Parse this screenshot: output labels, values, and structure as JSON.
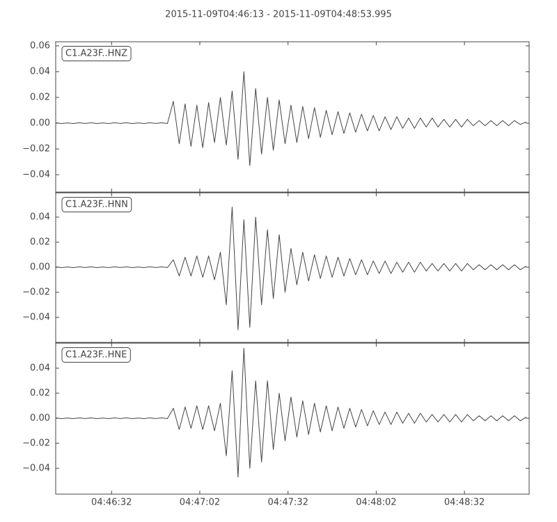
{
  "title": "2015-11-09T04:46:13  -  2015-11-09T04:48:53.995",
  "chart_data": [
    {
      "type": "line",
      "x": [
        0,
        2,
        4,
        6,
        8,
        10,
        12,
        14,
        16,
        18,
        20,
        22,
        24,
        26,
        28,
        30,
        32,
        34,
        36,
        38,
        40,
        42,
        44,
        46,
        48,
        50,
        52,
        54,
        56,
        58,
        60,
        62,
        64,
        66,
        68,
        70,
        72,
        74,
        76,
        78,
        80,
        82,
        84,
        86,
        88,
        90,
        92,
        94,
        96,
        98,
        100,
        102,
        104,
        106,
        108,
        110,
        112,
        114,
        116,
        118,
        120,
        122,
        124,
        126,
        128,
        130,
        132,
        134,
        136,
        138,
        140,
        142,
        144,
        146,
        148,
        150,
        152,
        154,
        156,
        158,
        160
      ],
      "series": [
        {
          "name": "C1.A23F..HNZ",
          "color": "#444444",
          "values": [
            0.0003,
            -0.0003,
            0.0002,
            -0.0003,
            0.0003,
            -0.0002,
            0.0003,
            -0.0003,
            0.0002,
            -0.0003,
            0.0003,
            -0.0002,
            0.0003,
            -0.0003,
            0.0002,
            -0.0003,
            0.0003,
            -0.0002,
            0.0003,
            -0.0003,
            0.017,
            -0.016,
            0.015,
            -0.018,
            0.014,
            -0.019,
            0.016,
            -0.015,
            0.02,
            -0.017,
            0.025,
            -0.028,
            0.04,
            -0.033,
            0.027,
            -0.024,
            0.02,
            -0.021,
            0.018,
            -0.016,
            0.014,
            -0.015,
            0.013,
            -0.012,
            0.012,
            -0.011,
            0.01,
            -0.009,
            0.009,
            -0.008,
            0.008,
            -0.007,
            0.007,
            -0.006,
            0.006,
            -0.006,
            0.005,
            -0.005,
            0.005,
            -0.004,
            0.004,
            -0.004,
            0.004,
            -0.003,
            0.004,
            -0.003,
            0.003,
            -0.003,
            0.003,
            -0.003,
            0.003,
            -0.002,
            0.002,
            -0.002,
            0.002,
            -0.002,
            0.002,
            -0.002,
            0.002,
            -0.001,
            0.001
          ]
        }
      ],
      "xlim": [
        0,
        160.995
      ],
      "ylim": [
        -0.0535,
        0.0632
      ],
      "yticks": [
        {
          "value": -0.04,
          "label": "−0.04"
        },
        {
          "value": -0.02,
          "label": "−0.02"
        },
        {
          "value": 0,
          "label": "0.00"
        },
        {
          "value": 0.02,
          "label": "0.02"
        },
        {
          "value": 0.04,
          "label": "0.04"
        },
        {
          "value": 0.06,
          "label": "0.06"
        }
      ]
    },
    {
      "type": "line",
      "x": [
        0,
        2,
        4,
        6,
        8,
        10,
        12,
        14,
        16,
        18,
        20,
        22,
        24,
        26,
        28,
        30,
        32,
        34,
        36,
        38,
        40,
        42,
        44,
        46,
        48,
        50,
        52,
        54,
        56,
        58,
        60,
        62,
        64,
        66,
        68,
        70,
        72,
        74,
        76,
        78,
        80,
        82,
        84,
        86,
        88,
        90,
        92,
        94,
        96,
        98,
        100,
        102,
        104,
        106,
        108,
        110,
        112,
        114,
        116,
        118,
        120,
        122,
        124,
        126,
        128,
        130,
        132,
        134,
        136,
        138,
        140,
        142,
        144,
        146,
        148,
        150,
        152,
        154,
        156,
        158,
        160
      ],
      "series": [
        {
          "name": "C1.A23F..HNN",
          "color": "#444444",
          "values": [
            0.0003,
            -0.0003,
            0.0002,
            -0.0003,
            0.0003,
            -0.0002,
            0.0003,
            -0.0003,
            0.0002,
            -0.0003,
            0.0003,
            -0.0002,
            0.0003,
            -0.0003,
            0.0002,
            -0.0003,
            0.0003,
            -0.0002,
            0.0003,
            -0.0003,
            0.006,
            -0.007,
            0.008,
            -0.007,
            0.009,
            -0.008,
            0.009,
            -0.01,
            0.012,
            -0.03,
            0.048,
            -0.05,
            0.038,
            -0.048,
            0.04,
            -0.03,
            0.03,
            -0.025,
            0.026,
            -0.02,
            0.015,
            -0.014,
            0.012,
            -0.011,
            0.01,
            -0.009,
            0.009,
            -0.008,
            0.008,
            -0.007,
            0.007,
            -0.006,
            0.006,
            -0.006,
            0.005,
            -0.005,
            0.005,
            -0.005,
            0.004,
            -0.004,
            0.004,
            -0.004,
            0.004,
            -0.003,
            0.003,
            -0.003,
            0.003,
            -0.003,
            0.003,
            -0.003,
            0.003,
            -0.002,
            0.002,
            -0.002,
            0.002,
            -0.002,
            0.002,
            -0.002,
            0.002,
            -0.002,
            0.001
          ]
        }
      ],
      "xlim": [
        0,
        160.995
      ],
      "ylim": [
        -0.06,
        0.0594
      ],
      "yticks": [
        {
          "value": -0.04,
          "label": "−0.04"
        },
        {
          "value": -0.02,
          "label": "−0.02"
        },
        {
          "value": 0,
          "label": "0.00"
        },
        {
          "value": 0.02,
          "label": "0.02"
        },
        {
          "value": 0.04,
          "label": "0.04"
        }
      ]
    },
    {
      "type": "line",
      "x": [
        0,
        2,
        4,
        6,
        8,
        10,
        12,
        14,
        16,
        18,
        20,
        22,
        24,
        26,
        28,
        30,
        32,
        34,
        36,
        38,
        40,
        42,
        44,
        46,
        48,
        50,
        52,
        54,
        56,
        58,
        60,
        62,
        64,
        66,
        68,
        70,
        72,
        74,
        76,
        78,
        80,
        82,
        84,
        86,
        88,
        90,
        92,
        94,
        96,
        98,
        100,
        102,
        104,
        106,
        108,
        110,
        112,
        114,
        116,
        118,
        120,
        122,
        124,
        126,
        128,
        130,
        132,
        134,
        136,
        138,
        140,
        142,
        144,
        146,
        148,
        150,
        152,
        154,
        156,
        158,
        160
      ],
      "series": [
        {
          "name": "C1.A23F..HNE",
          "color": "#444444",
          "values": [
            0.0003,
            -0.0003,
            0.0002,
            -0.0003,
            0.0003,
            -0.0002,
            0.0003,
            -0.0003,
            0.0002,
            -0.0003,
            0.0003,
            -0.0002,
            0.0003,
            -0.0003,
            0.0002,
            -0.0003,
            0.0003,
            -0.0002,
            0.0003,
            -0.0003,
            0.008,
            -0.009,
            0.009,
            -0.008,
            0.01,
            -0.009,
            0.01,
            -0.01,
            0.012,
            -0.03,
            0.038,
            -0.047,
            0.056,
            -0.04,
            0.03,
            -0.035,
            0.03,
            -0.025,
            0.02,
            -0.018,
            0.017,
            -0.015,
            0.014,
            -0.013,
            0.012,
            -0.011,
            0.01,
            -0.01,
            0.009,
            -0.008,
            0.008,
            -0.007,
            0.007,
            -0.006,
            0.006,
            -0.005,
            0.005,
            -0.005,
            0.005,
            -0.004,
            0.004,
            -0.004,
            0.004,
            -0.003,
            0.003,
            -0.003,
            0.003,
            -0.003,
            0.003,
            -0.003,
            0.003,
            -0.002,
            0.002,
            -0.002,
            0.002,
            -0.002,
            0.002,
            -0.002,
            0.002,
            -0.002,
            0.001
          ]
        }
      ],
      "xlim": [
        0,
        160.995
      ],
      "ylim": [
        -0.0606,
        0.06
      ],
      "yticks": [
        {
          "value": -0.04,
          "label": "−0.04"
        },
        {
          "value": -0.02,
          "label": "−0.02"
        },
        {
          "value": 0,
          "label": "0.00"
        },
        {
          "value": 0.02,
          "label": "0.02"
        },
        {
          "value": 0.04,
          "label": "0.04"
        }
      ],
      "xticks": [
        {
          "value": 19,
          "label": "04:46:32"
        },
        {
          "value": 49,
          "label": "04:47:02"
        },
        {
          "value": 79,
          "label": "04:47:32"
        },
        {
          "value": 109,
          "label": "04:48:02"
        },
        {
          "value": 139,
          "label": "04:48:32"
        }
      ]
    }
  ]
}
